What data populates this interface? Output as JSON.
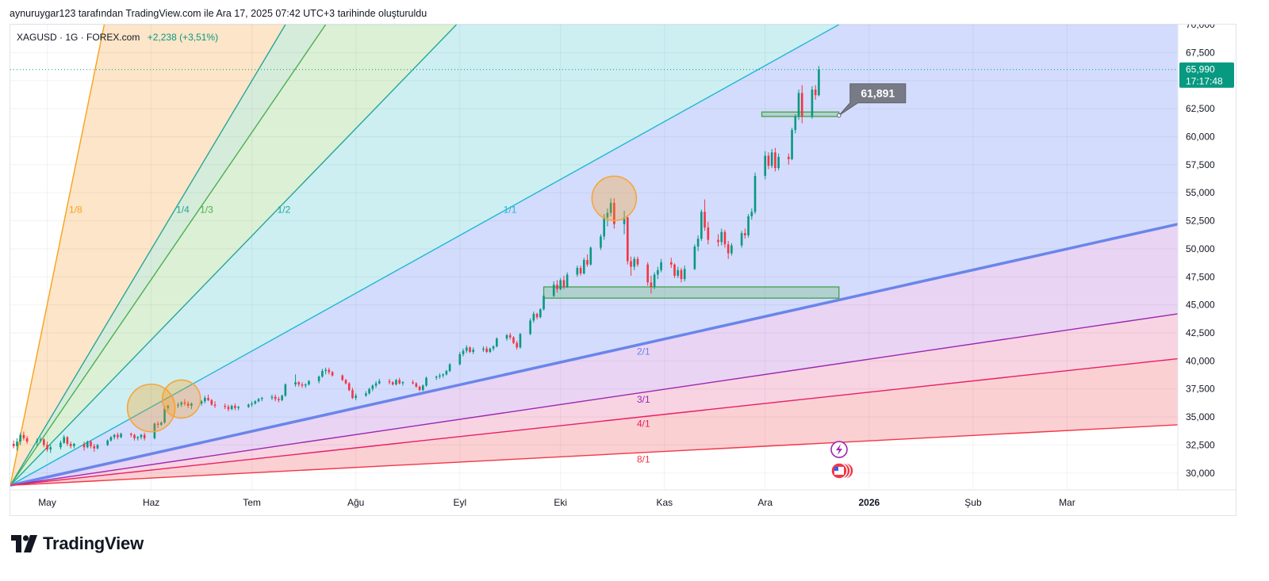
{
  "header": {
    "caption": "aynuruygar123 tarafından TradingView.com ile Ara 17, 2025 07:42 UTC+3 tarihinde oluşturuldu"
  },
  "legend": {
    "symbol": "XAGUSD · 1G · FOREX.com",
    "change": "+2,238 (+3,51%)"
  },
  "brand": {
    "name": "TradingView",
    "icon": "tradingview-logo-icon"
  },
  "colors": {
    "up": "#089981",
    "down": "#f23645",
    "axis_text": "#131722",
    "price_tag": "#089981",
    "callout": "#787b86"
  },
  "chart_data": {
    "type": "candlestick",
    "symbol": "XAGUSD",
    "timeframe": "1G",
    "ylim": [
      28.5,
      70.0
    ],
    "y_ticks": [
      "70,000",
      "67,500",
      "65,000",
      "62,500",
      "60,000",
      "57,500",
      "55,000",
      "52,500",
      "50,000",
      "47,500",
      "45,000",
      "42,500",
      "40,000",
      "37,500",
      "35,000",
      "32,500",
      "30,000"
    ],
    "y_tick_values": [
      70,
      67.5,
      65,
      62.5,
      60,
      57.5,
      55,
      52.5,
      50,
      47.5,
      45,
      42.5,
      40,
      37.5,
      35,
      32.5,
      30
    ],
    "x_ticks": [
      "May",
      "Haz",
      "Tem",
      "Ağu",
      "Eyl",
      "Eki",
      "Kas",
      "Ara",
      "2026",
      "Şub",
      "Mar"
    ],
    "x_tick_dates": [
      "2025-05-01",
      "2025-06-01",
      "2025-07-01",
      "2025-08-01",
      "2025-09-01",
      "2025-10-01",
      "2025-11-01",
      "2025-12-01",
      "2026-01-01",
      "2026-02-01",
      "2026-03-01"
    ],
    "x_range": [
      "2025-04-20",
      "2026-04-03"
    ],
    "last_price": "65,990",
    "countdown": "17:17:48",
    "last_price_value": 65.99,
    "callout_label": "61,891",
    "callout_value": 61.891,
    "fan": {
      "origin_date": "2025-04-20",
      "origin_price": 28.9,
      "lines": [
        {
          "label": "1/8",
          "end_date": "2025-05-18",
          "end_price": 70,
          "color": "#f7a21b"
        },
        {
          "label": "1/4",
          "end_date": "2025-07-11",
          "end_price": 70,
          "color": "#26a69a"
        },
        {
          "label": "1/3",
          "end_date": "2025-07-23",
          "end_price": 70,
          "color": "#4caf50"
        },
        {
          "label": "1/2",
          "end_date": "2025-08-31",
          "end_price": 70,
          "color": "#26a69a"
        },
        {
          "label": "1/1",
          "end_date": "2025-12-23",
          "end_price": 70,
          "color": "#22b7d3"
        },
        {
          "label": "2/1",
          "end_date": "2026-04-03",
          "end_price": 52.2,
          "color": "#6a85ea"
        },
        {
          "label": "3/1",
          "end_date": "2026-04-03",
          "end_price": 44.2,
          "color": "#9c27b0"
        },
        {
          "label": "4/1",
          "end_date": "2026-04-03",
          "end_price": 40.2,
          "color": "#e91e63"
        },
        {
          "label": "8/1",
          "end_date": "2026-04-03",
          "end_price": 34.3,
          "color": "#f23645"
        }
      ]
    },
    "zones": [
      {
        "from": "2025-09-26",
        "to": "2025-12-23",
        "low": 45.6,
        "high": 46.6
      },
      {
        "from": "2025-11-30",
        "to": "2025-12-23",
        "low": 61.8,
        "high": 62.2
      }
    ],
    "circles": [
      {
        "date": "2025-06-01",
        "price": 35.8
      },
      {
        "date": "2025-06-10",
        "price": 36.6
      },
      {
        "date": "2025-10-17",
        "price": 54.5
      }
    ],
    "candles": [
      [
        "2025-04-21",
        32.6,
        32.9,
        32.2,
        32.4
      ],
      [
        "2025-04-22",
        32.4,
        33.1,
        32.0,
        32.8
      ],
      [
        "2025-04-23",
        32.8,
        33.6,
        32.5,
        33.4
      ],
      [
        "2025-04-24",
        33.4,
        33.7,
        32.9,
        33.1
      ],
      [
        "2025-04-25",
        33.1,
        33.3,
        32.6,
        32.8
      ],
      [
        "2025-04-28",
        32.8,
        33.1,
        32.4,
        32.9
      ],
      [
        "2025-04-29",
        32.9,
        33.2,
        32.7,
        33.0
      ],
      [
        "2025-04-30",
        33.0,
        33.1,
        32.3,
        32.5
      ],
      [
        "2025-05-01",
        32.5,
        32.8,
        31.9,
        32.1
      ],
      [
        "2025-05-02",
        32.1,
        32.5,
        31.8,
        32.3
      ],
      [
        "2025-05-05",
        32.3,
        32.9,
        32.1,
        32.7
      ],
      [
        "2025-05-06",
        32.7,
        33.4,
        32.6,
        33.2
      ],
      [
        "2025-05-07",
        33.2,
        33.3,
        32.4,
        32.6
      ],
      [
        "2025-05-08",
        32.6,
        32.8,
        32.2,
        32.4
      ],
      [
        "2025-05-09",
        32.4,
        32.7,
        32.2,
        32.6
      ],
      [
        "2025-05-12",
        32.6,
        32.8,
        32.0,
        32.3
      ],
      [
        "2025-05-13",
        32.3,
        32.9,
        32.2,
        32.8
      ],
      [
        "2025-05-14",
        32.8,
        32.9,
        32.2,
        32.4
      ],
      [
        "2025-05-15",
        32.4,
        32.6,
        31.9,
        32.2
      ],
      [
        "2025-05-16",
        32.2,
        32.6,
        32.1,
        32.5
      ],
      [
        "2025-05-19",
        32.5,
        33.0,
        32.4,
        32.9
      ],
      [
        "2025-05-20",
        32.9,
        33.3,
        32.8,
        33.2
      ],
      [
        "2025-05-21",
        33.2,
        33.5,
        33.0,
        33.4
      ],
      [
        "2025-05-22",
        33.4,
        33.6,
        33.0,
        33.2
      ],
      [
        "2025-05-23",
        33.2,
        33.6,
        33.1,
        33.5
      ],
      [
        "2025-05-26",
        33.5,
        33.6,
        33.2,
        33.4
      ],
      [
        "2025-05-27",
        33.4,
        33.5,
        32.9,
        33.1
      ],
      [
        "2025-05-28",
        33.1,
        33.3,
        32.9,
        33.2
      ],
      [
        "2025-05-29",
        33.2,
        33.5,
        33.0,
        33.4
      ],
      [
        "2025-05-30",
        33.4,
        33.6,
        32.9,
        33.1
      ],
      [
        "2025-06-02",
        33.1,
        34.5,
        33.0,
        34.4
      ],
      [
        "2025-06-03",
        34.4,
        34.6,
        34.0,
        34.3
      ],
      [
        "2025-06-04",
        34.3,
        34.6,
        34.2,
        34.5
      ],
      [
        "2025-06-05",
        34.5,
        36.0,
        34.4,
        35.8
      ],
      [
        "2025-06-06",
        35.8,
        36.1,
        35.6,
        36.0
      ],
      [
        "2025-06-09",
        36.0,
        36.3,
        35.8,
        36.1
      ],
      [
        "2025-06-10",
        36.1,
        36.4,
        35.9,
        36.3
      ],
      [
        "2025-06-11",
        36.3,
        36.6,
        36.0,
        36.2
      ],
      [
        "2025-06-12",
        36.2,
        36.4,
        35.8,
        36.0
      ],
      [
        "2025-06-13",
        36.0,
        36.3,
        35.7,
        36.2
      ],
      [
        "2025-06-16",
        36.2,
        36.5,
        36.0,
        36.4
      ],
      [
        "2025-06-17",
        36.4,
        36.9,
        36.2,
        36.7
      ],
      [
        "2025-06-18",
        36.7,
        37.0,
        36.4,
        36.5
      ],
      [
        "2025-06-19",
        36.5,
        36.6,
        36.0,
        36.1
      ],
      [
        "2025-06-20",
        36.1,
        36.4,
        35.8,
        36.0
      ],
      [
        "2025-06-23",
        36.0,
        36.2,
        35.7,
        35.9
      ],
      [
        "2025-06-24",
        35.9,
        36.1,
        35.5,
        35.7
      ],
      [
        "2025-06-25",
        35.7,
        36.1,
        35.6,
        36.0
      ],
      [
        "2025-06-26",
        36.0,
        36.2,
        35.6,
        35.8
      ],
      [
        "2025-06-27",
        35.8,
        36.0,
        35.6,
        35.9
      ],
      [
        "2025-06-30",
        35.9,
        36.2,
        35.8,
        36.1
      ],
      [
        "2025-07-01",
        36.1,
        36.4,
        35.9,
        36.2
      ],
      [
        "2025-07-02",
        36.2,
        36.5,
        36.1,
        36.4
      ],
      [
        "2025-07-03",
        36.4,
        36.7,
        36.3,
        36.6
      ],
      [
        "2025-07-04",
        36.6,
        36.8,
        36.4,
        36.7
      ],
      [
        "2025-07-07",
        36.7,
        37.0,
        36.5,
        36.8
      ],
      [
        "2025-07-08",
        36.8,
        37.0,
        36.4,
        36.6
      ],
      [
        "2025-07-09",
        36.6,
        36.8,
        36.3,
        36.5
      ],
      [
        "2025-07-10",
        36.5,
        37.0,
        36.4,
        36.9
      ],
      [
        "2025-07-11",
        36.9,
        38.0,
        36.8,
        37.9
      ],
      [
        "2025-07-14",
        37.9,
        38.8,
        37.7,
        38.1
      ],
      [
        "2025-07-15",
        38.1,
        38.2,
        37.7,
        37.9
      ],
      [
        "2025-07-16",
        37.9,
        38.1,
        37.6,
        37.8
      ],
      [
        "2025-07-17",
        37.8,
        38.0,
        37.6,
        37.9
      ],
      [
        "2025-07-18",
        37.9,
        38.3,
        37.8,
        38.2
      ],
      [
        "2025-07-21",
        38.2,
        38.7,
        38.0,
        38.6
      ],
      [
        "2025-07-22",
        38.6,
        39.3,
        38.5,
        39.1
      ],
      [
        "2025-07-23",
        39.1,
        39.4,
        38.8,
        39.2
      ],
      [
        "2025-07-24",
        39.2,
        39.4,
        38.8,
        39.0
      ],
      [
        "2025-07-25",
        39.0,
        39.1,
        38.6,
        38.7
      ],
      [
        "2025-07-28",
        38.7,
        38.8,
        38.2,
        38.3
      ],
      [
        "2025-07-29",
        38.3,
        38.4,
        37.9,
        38.0
      ],
      [
        "2025-07-30",
        38.0,
        38.1,
        37.3,
        37.4
      ],
      [
        "2025-07-31",
        37.4,
        37.6,
        36.6,
        36.7
      ],
      [
        "2025-08-01",
        36.7,
        37.1,
        36.5,
        36.9
      ],
      [
        "2025-08-04",
        36.9,
        37.3,
        36.8,
        37.1
      ],
      [
        "2025-08-05",
        37.1,
        37.6,
        37.0,
        37.5
      ],
      [
        "2025-08-06",
        37.5,
        37.9,
        37.3,
        37.8
      ],
      [
        "2025-08-07",
        37.8,
        38.2,
        37.6,
        38.0
      ],
      [
        "2025-08-08",
        38.0,
        38.4,
        37.9,
        38.2
      ],
      [
        "2025-08-11",
        38.2,
        38.4,
        37.9,
        38.1
      ],
      [
        "2025-08-12",
        38.1,
        38.2,
        37.8,
        37.9
      ],
      [
        "2025-08-13",
        37.9,
        38.4,
        37.8,
        38.3
      ],
      [
        "2025-08-14",
        38.3,
        38.5,
        37.9,
        38.0
      ],
      [
        "2025-08-15",
        38.0,
        38.2,
        37.8,
        38.1
      ],
      [
        "2025-08-18",
        38.1,
        38.3,
        37.9,
        38.0
      ],
      [
        "2025-08-19",
        38.0,
        38.1,
        37.6,
        37.7
      ],
      [
        "2025-08-20",
        37.7,
        37.8,
        37.3,
        37.4
      ],
      [
        "2025-08-21",
        37.4,
        37.9,
        37.3,
        37.8
      ],
      [
        "2025-08-22",
        37.8,
        38.6,
        37.7,
        38.5
      ],
      [
        "2025-08-25",
        38.5,
        38.7,
        38.3,
        38.6
      ],
      [
        "2025-08-26",
        38.6,
        38.9,
        38.4,
        38.7
      ],
      [
        "2025-08-27",
        38.7,
        38.9,
        38.5,
        38.8
      ],
      [
        "2025-08-28",
        38.8,
        39.2,
        38.7,
        39.1
      ],
      [
        "2025-08-29",
        39.1,
        39.8,
        39.0,
        39.7
      ],
      [
        "2025-09-01",
        39.7,
        40.8,
        39.6,
        40.6
      ],
      [
        "2025-09-02",
        40.6,
        41.1,
        40.4,
        40.9
      ],
      [
        "2025-09-03",
        40.9,
        41.4,
        40.7,
        41.2
      ],
      [
        "2025-09-04",
        41.2,
        41.3,
        40.7,
        40.8
      ],
      [
        "2025-09-05",
        40.8,
        41.2,
        40.6,
        41.0
      ],
      [
        "2025-09-08",
        41.0,
        41.3,
        40.8,
        41.1
      ],
      [
        "2025-09-09",
        41.1,
        41.3,
        40.7,
        40.8
      ],
      [
        "2025-09-10",
        40.8,
        41.2,
        40.7,
        41.1
      ],
      [
        "2025-09-11",
        41.1,
        41.4,
        40.9,
        41.3
      ],
      [
        "2025-09-12",
        41.3,
        42.1,
        41.2,
        42.0
      ],
      [
        "2025-09-15",
        42.0,
        42.4,
        41.8,
        42.3
      ],
      [
        "2025-09-16",
        42.3,
        42.5,
        41.9,
        42.1
      ],
      [
        "2025-09-17",
        42.1,
        42.2,
        41.5,
        41.6
      ],
      [
        "2025-09-18",
        41.6,
        41.8,
        41.0,
        41.2
      ],
      [
        "2025-09-19",
        41.2,
        42.5,
        41.1,
        42.4
      ],
      [
        "2025-09-22",
        42.4,
        43.8,
        42.3,
        43.6
      ],
      [
        "2025-09-23",
        43.6,
        44.4,
        43.4,
        44.2
      ],
      [
        "2025-09-24",
        44.2,
        44.3,
        43.7,
        43.9
      ],
      [
        "2025-09-25",
        43.9,
        44.7,
        43.8,
        44.6
      ],
      [
        "2025-09-26",
        44.6,
        46.0,
        44.5,
        45.8
      ],
      [
        "2025-09-29",
        45.8,
        47.1,
        45.7,
        46.8
      ],
      [
        "2025-09-30",
        46.8,
        47.2,
        46.1,
        46.4
      ],
      [
        "2025-10-01",
        46.4,
        47.4,
        46.3,
        47.2
      ],
      [
        "2025-10-02",
        47.2,
        47.6,
        46.4,
        46.6
      ],
      [
        "2025-10-03",
        46.6,
        47.9,
        46.5,
        47.7
      ],
      [
        "2025-10-06",
        47.7,
        48.5,
        47.5,
        48.3
      ],
      [
        "2025-10-07",
        48.3,
        48.5,
        47.6,
        47.8
      ],
      [
        "2025-10-08",
        47.8,
        49.2,
        47.7,
        49.0
      ],
      [
        "2025-10-09",
        49.0,
        49.5,
        48.4,
        48.6
      ],
      [
        "2025-10-10",
        48.6,
        50.2,
        48.5,
        50.1
      ],
      [
        "2025-10-13",
        50.1,
        51.3,
        49.9,
        51.1
      ],
      [
        "2025-10-14",
        51.1,
        53.1,
        50.8,
        52.8
      ],
      [
        "2025-10-15",
        52.8,
        53.6,
        52.0,
        53.2
      ],
      [
        "2025-10-16",
        53.2,
        54.5,
        52.9,
        54.1
      ],
      [
        "2025-10-17",
        54.1,
        54.5,
        51.8,
        52.2
      ],
      [
        "2025-10-20",
        52.2,
        53.4,
        51.3,
        52.8
      ],
      [
        "2025-10-21",
        52.8,
        53.0,
        48.6,
        48.9
      ],
      [
        "2025-10-22",
        48.9,
        49.3,
        47.6,
        48.4
      ],
      [
        "2025-10-23",
        48.4,
        49.3,
        48.1,
        49.1
      ],
      [
        "2025-10-24",
        49.1,
        49.3,
        48.4,
        48.6
      ],
      [
        "2025-10-27",
        48.6,
        48.8,
        46.7,
        47.0
      ],
      [
        "2025-10-28",
        47.0,
        47.6,
        46.0,
        46.6
      ],
      [
        "2025-10-29",
        46.6,
        47.9,
        46.4,
        47.7
      ],
      [
        "2025-10-30",
        47.7,
        48.4,
        47.3,
        48.1
      ],
      [
        "2025-10-31",
        48.1,
        49.1,
        47.9,
        48.8
      ],
      [
        "2025-11-03",
        48.8,
        49.2,
        48.3,
        48.6
      ],
      [
        "2025-11-04",
        48.6,
        48.7,
        47.4,
        47.6
      ],
      [
        "2025-11-05",
        47.6,
        48.4,
        47.4,
        48.1
      ],
      [
        "2025-11-06",
        48.1,
        48.3,
        47.0,
        47.3
      ],
      [
        "2025-11-07",
        47.3,
        48.5,
        47.1,
        48.2
      ],
      [
        "2025-11-10",
        48.2,
        50.4,
        48.1,
        50.2
      ],
      [
        "2025-11-11",
        50.2,
        51.2,
        49.8,
        50.9
      ],
      [
        "2025-11-12",
        50.9,
        53.5,
        50.7,
        53.3
      ],
      [
        "2025-11-13",
        53.3,
        54.4,
        51.6,
        51.9
      ],
      [
        "2025-11-14",
        51.9,
        52.4,
        50.4,
        50.8
      ],
      [
        "2025-11-17",
        50.8,
        51.3,
        50.2,
        50.6
      ],
      [
        "2025-11-18",
        50.6,
        51.8,
        50.3,
        51.5
      ],
      [
        "2025-11-19",
        51.5,
        51.7,
        50.1,
        50.4
      ],
      [
        "2025-11-20",
        50.4,
        50.7,
        49.1,
        49.6
      ],
      [
        "2025-11-21",
        49.6,
        50.5,
        49.4,
        50.3
      ],
      [
        "2025-11-24",
        50.3,
        51.6,
        50.1,
        51.4
      ],
      [
        "2025-11-25",
        51.4,
        51.8,
        50.9,
        51.2
      ],
      [
        "2025-11-26",
        51.2,
        53.1,
        51.0,
        52.9
      ],
      [
        "2025-11-27",
        52.9,
        53.6,
        52.6,
        53.3
      ],
      [
        "2025-11-28",
        53.3,
        56.8,
        53.1,
        56.5
      ],
      [
        "2025-12-01",
        56.5,
        58.7,
        56.2,
        58.3
      ],
      [
        "2025-12-02",
        58.3,
        58.6,
        57.1,
        57.4
      ],
      [
        "2025-12-03",
        57.4,
        58.9,
        57.2,
        58.6
      ],
      [
        "2025-12-04",
        58.6,
        59.0,
        56.9,
        57.2
      ],
      [
        "2025-12-05",
        57.2,
        58.5,
        57.0,
        58.2
      ],
      [
        "2025-12-08",
        58.2,
        58.5,
        57.5,
        58.0
      ],
      [
        "2025-12-09",
        58.0,
        60.8,
        57.9,
        60.6
      ],
      [
        "2025-12-10",
        60.6,
        62.0,
        60.3,
        61.8
      ],
      [
        "2025-12-11",
        61.8,
        64.2,
        61.5,
        63.9
      ],
      [
        "2025-12-12",
        63.9,
        64.6,
        61.2,
        61.8
      ],
      [
        "2025-12-15",
        61.8,
        64.5,
        61.6,
        64.2
      ],
      [
        "2025-12-16",
        64.2,
        64.6,
        63.3,
        63.7
      ],
      [
        "2025-12-17",
        63.7,
        66.3,
        63.6,
        65.99
      ]
    ]
  }
}
